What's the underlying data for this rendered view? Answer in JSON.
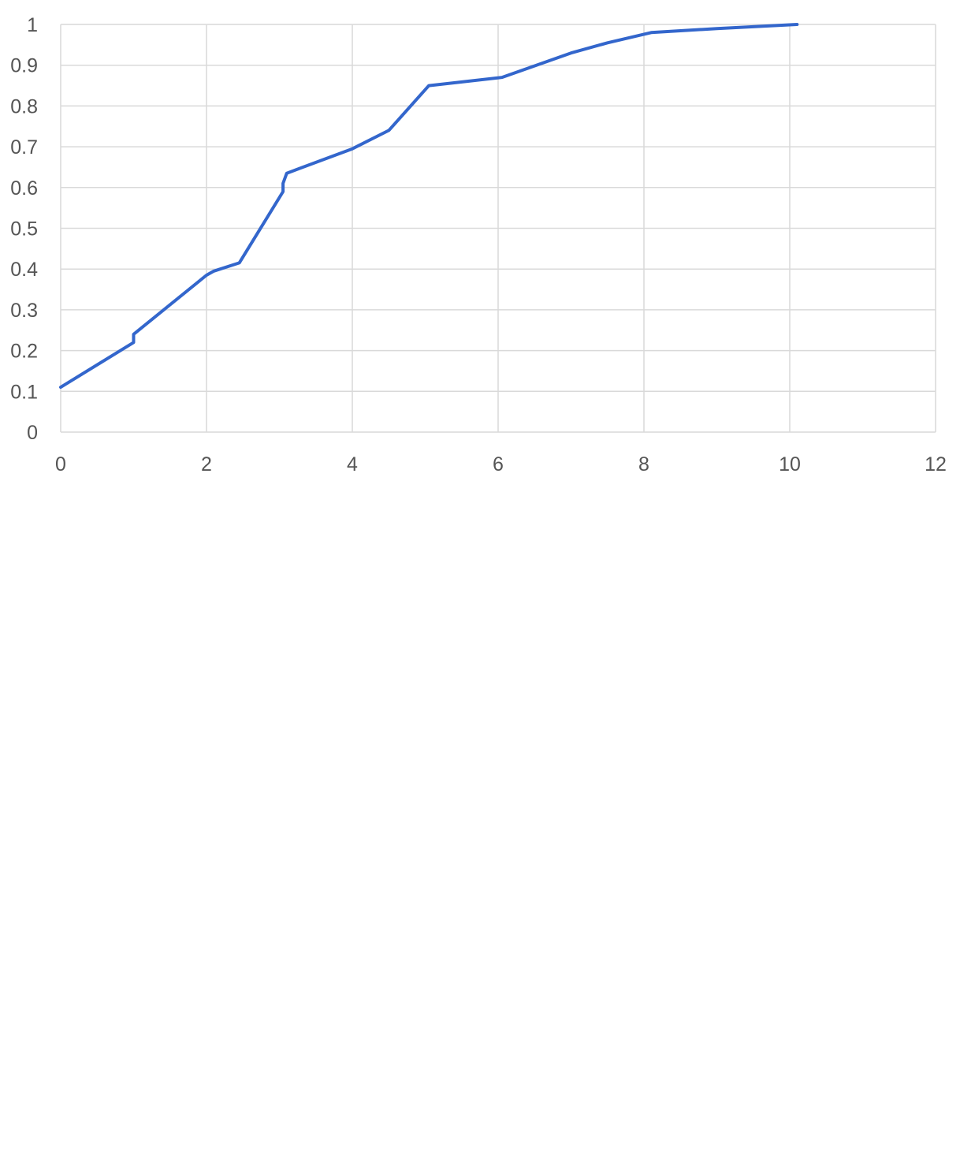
{
  "chart_data": {
    "type": "line",
    "title": "",
    "xlabel": "",
    "ylabel": "",
    "xlim": [
      0,
      12
    ],
    "ylim": [
      0,
      1
    ],
    "x_ticks": [
      0,
      2,
      4,
      6,
      8,
      10,
      12
    ],
    "y_ticks": [
      0,
      0.1,
      0.2,
      0.3,
      0.4,
      0.5,
      0.6,
      0.7,
      0.8,
      0.9,
      1
    ],
    "x_tick_labels": [
      "0",
      "2",
      "4",
      "6",
      "8",
      "10",
      "12"
    ],
    "y_tick_labels": [
      "0",
      "0.1",
      "0.2",
      "0.3",
      "0.4",
      "0.5",
      "0.6",
      "0.7",
      "0.8",
      "0.9",
      "1"
    ],
    "grid": true,
    "legend": "none",
    "series": [
      {
        "color": "#3366cc",
        "x": [
          0,
          1,
          1,
          2,
          2.1,
          2.45,
          3.05,
          3.05,
          3.1,
          4,
          4.5,
          5.05,
          6.05,
          7,
          7.5,
          8.1,
          9,
          10.1
        ],
        "y": [
          0.11,
          0.22,
          0.24,
          0.385,
          0.395,
          0.415,
          0.59,
          0.61,
          0.635,
          0.695,
          0.74,
          0.85,
          0.87,
          0.93,
          0.955,
          0.98,
          0.99,
          1.0
        ]
      }
    ]
  }
}
